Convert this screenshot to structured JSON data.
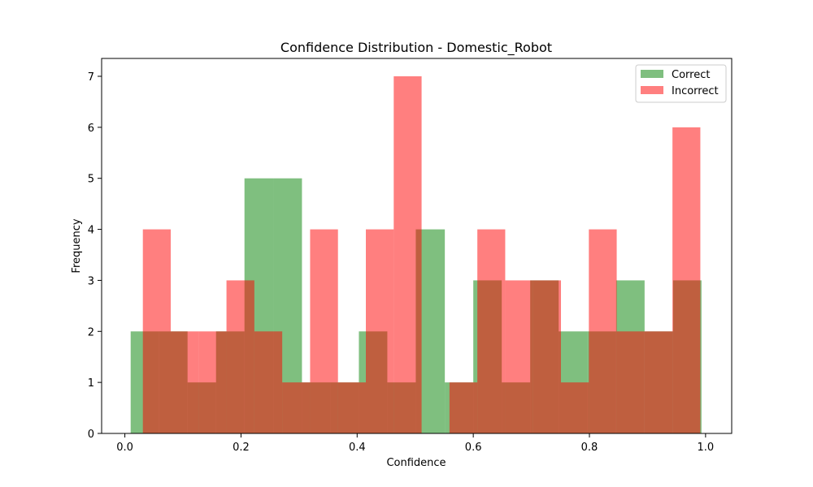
{
  "chart_data": {
    "type": "bar",
    "title": "Confidence Distribution - Domestic_Robot",
    "xlabel": "Confidence",
    "ylabel": "Frequency",
    "xlim": [
      -0.04,
      1.045
    ],
    "ylim": [
      0,
      7.35
    ],
    "xticks": [
      0.0,
      0.2,
      0.4,
      0.6,
      0.8,
      1.0
    ],
    "xtick_labels": [
      "0.0",
      "0.2",
      "0.4",
      "0.6",
      "0.8",
      "1.0"
    ],
    "yticks": [
      0,
      1,
      2,
      3,
      4,
      5,
      6,
      7
    ],
    "ytick_labels": [
      "0",
      "1",
      "2",
      "3",
      "4",
      "5",
      "6",
      "7"
    ],
    "grid": false,
    "legend_position": "top-right",
    "series": [
      {
        "name": "Correct",
        "color": "#008000",
        "opacity": 0.5,
        "bin_edges": [
          0.01,
          0.059,
          0.108,
          0.157,
          0.206,
          0.256,
          0.305,
          0.354,
          0.403,
          0.452,
          0.501,
          0.551,
          0.6,
          0.649,
          0.698,
          0.747,
          0.797,
          0.846,
          0.895,
          0.944,
          0.993
        ],
        "counts": [
          2,
          2,
          1,
          2,
          5,
          5,
          1,
          1,
          2,
          1,
          4,
          1,
          3,
          1,
          3,
          2,
          2,
          3,
          2,
          3
        ]
      },
      {
        "name": "Incorrect",
        "color": "#ff0000",
        "opacity": 0.5,
        "bin_edges": [
          0.031,
          0.079,
          0.127,
          0.175,
          0.223,
          0.271,
          0.319,
          0.367,
          0.415,
          0.463,
          0.511,
          0.559,
          0.607,
          0.655,
          0.703,
          0.751,
          0.799,
          0.847,
          0.895,
          0.943,
          0.991
        ],
        "counts": [
          4,
          2,
          2,
          3,
          2,
          1,
          4,
          1,
          4,
          7,
          0,
          1,
          4,
          3,
          3,
          1,
          4,
          2,
          2,
          6
        ]
      }
    ]
  }
}
